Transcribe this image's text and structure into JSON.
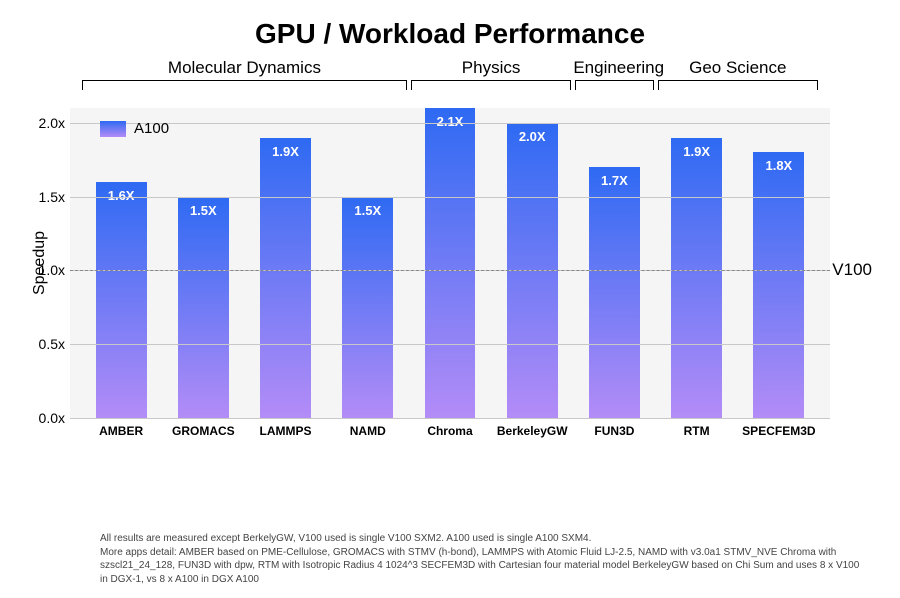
{
  "title": "GPU / Workload Performance",
  "ylabel": "Speedup",
  "legend": {
    "label": "A100",
    "color_top": "#2e6af3",
    "color_bottom": "#b38cf7"
  },
  "baseline": {
    "label": "V100",
    "value": 1.0
  },
  "yaxis": {
    "min": 0.0,
    "max": 2.1,
    "ticks": [
      0.0,
      0.5,
      1.0,
      1.5,
      2.0
    ],
    "tick_labels": [
      "0.0x",
      "0.5x",
      "1.0x",
      "1.5x",
      "2.0x"
    ]
  },
  "bar_gradient": {
    "top": "#2e6af3",
    "bottom": "#b38cf7"
  },
  "plot_bg": "#f5f5f5",
  "grid_color": "#c8c8c8",
  "groups": [
    {
      "label": "Molecular Dynamics",
      "start": 0,
      "end": 3
    },
    {
      "label": "Physics",
      "start": 4,
      "end": 5
    },
    {
      "label": "Engineering",
      "start": 6,
      "end": 6
    },
    {
      "label": "Geo Science",
      "start": 7,
      "end": 8
    }
  ],
  "bars": [
    {
      "name": "AMBER",
      "value": 1.6,
      "label": "1.6X"
    },
    {
      "name": "GROMACS",
      "value": 1.5,
      "label": "1.5X"
    },
    {
      "name": "LAMMPS",
      "value": 1.9,
      "label": "1.9X"
    },
    {
      "name": "NAMD",
      "value": 1.5,
      "label": "1.5X"
    },
    {
      "name": "Chroma",
      "value": 2.1,
      "label": "2.1X"
    },
    {
      "name": "BerkeleyGW",
      "value": 2.0,
      "label": "2.0X"
    },
    {
      "name": "FUN3D",
      "value": 1.7,
      "label": "1.7X"
    },
    {
      "name": "RTM",
      "value": 1.9,
      "label": "1.9X"
    },
    {
      "name": "SPECFEM3D",
      "value": 1.8,
      "label": "1.8X"
    }
  ],
  "footnote": "All results are measured except BerkelyGW, V100 used is single V100 SXM2. A100 used is single A100 SXM4.\nMore apps detail: AMBER based on PME-Cellulose, GROMACS with STMV (h-bond), LAMMPS with Atomic Fluid LJ-2.5, NAMD with v3.0a1 STMV_NVE Chroma with szscl21_24_128, FUN3D with dpw, RTM with Isotropic Radius 4 1024^3 SECFEM3D with Cartesian four material model BerkeleyGW based on Chi Sum and uses 8 x V100 in DGX-1, vs 8 x A100 in DGX A100"
}
